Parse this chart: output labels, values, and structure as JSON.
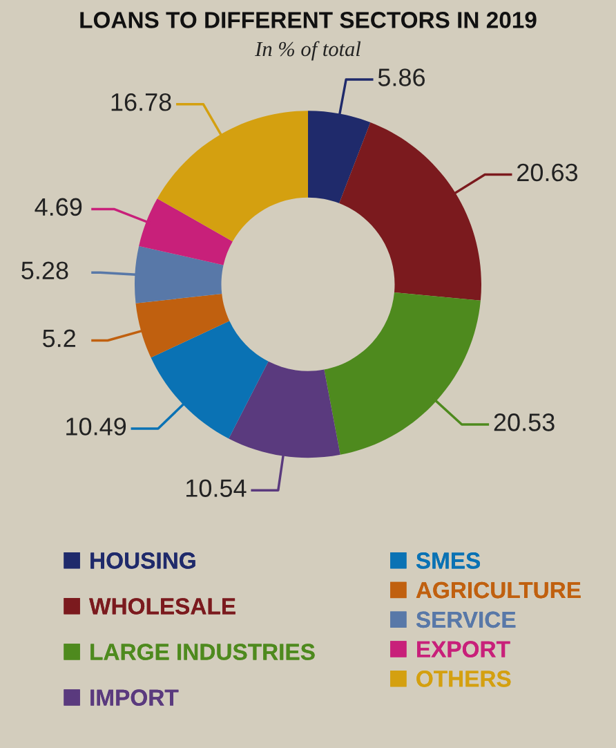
{
  "chart_data": {
    "type": "donut",
    "title": "LOANS TO DIFFERENT SECTORS IN 2019",
    "subtitle": "In % of total",
    "categories": [
      "HOUSING",
      "WHOLESALE",
      "LARGE INDUSTRIES",
      "IMPORT",
      "SMES",
      "AGRICULTURE",
      "SERVICE",
      "EXPORT",
      "OTHERS"
    ],
    "values": [
      5.86,
      20.63,
      20.53,
      10.54,
      10.49,
      5.2,
      5.28,
      4.69,
      16.78
    ],
    "colors": [
      "#1f2a6b",
      "#7b1a1e",
      "#4e8a1e",
      "#5a3a7e",
      "#0a72b4",
      "#c0600f",
      "#5878a8",
      "#c8207a",
      "#d4a010"
    ],
    "data_labels": true,
    "legend": "bottom"
  }
}
